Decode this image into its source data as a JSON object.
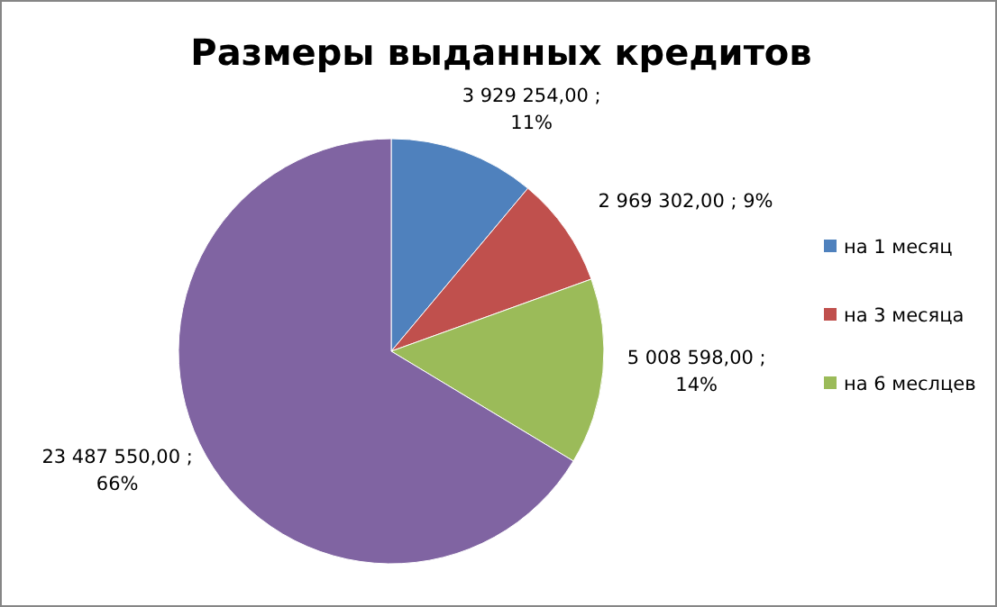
{
  "chart_data": {
    "type": "pie",
    "title": "Размеры выданных кредитов",
    "categories": [
      "на 1 месяц",
      "на 3 месяца",
      "на 6 меслцев",
      null
    ],
    "values": [
      3929254,
      2969302,
      5008598,
      23487550
    ],
    "colors": [
      "#4f81bd",
      "#c0504d",
      "#9bbb59",
      "#8064a2"
    ],
    "value_labels": [
      "3 929 254,00 ;\n11%",
      "2 969 302,00 ; 9%",
      "5 008 598,00 ;\n14%",
      "23 487 550,00 ;\n66%"
    ],
    "legend": "right"
  }
}
